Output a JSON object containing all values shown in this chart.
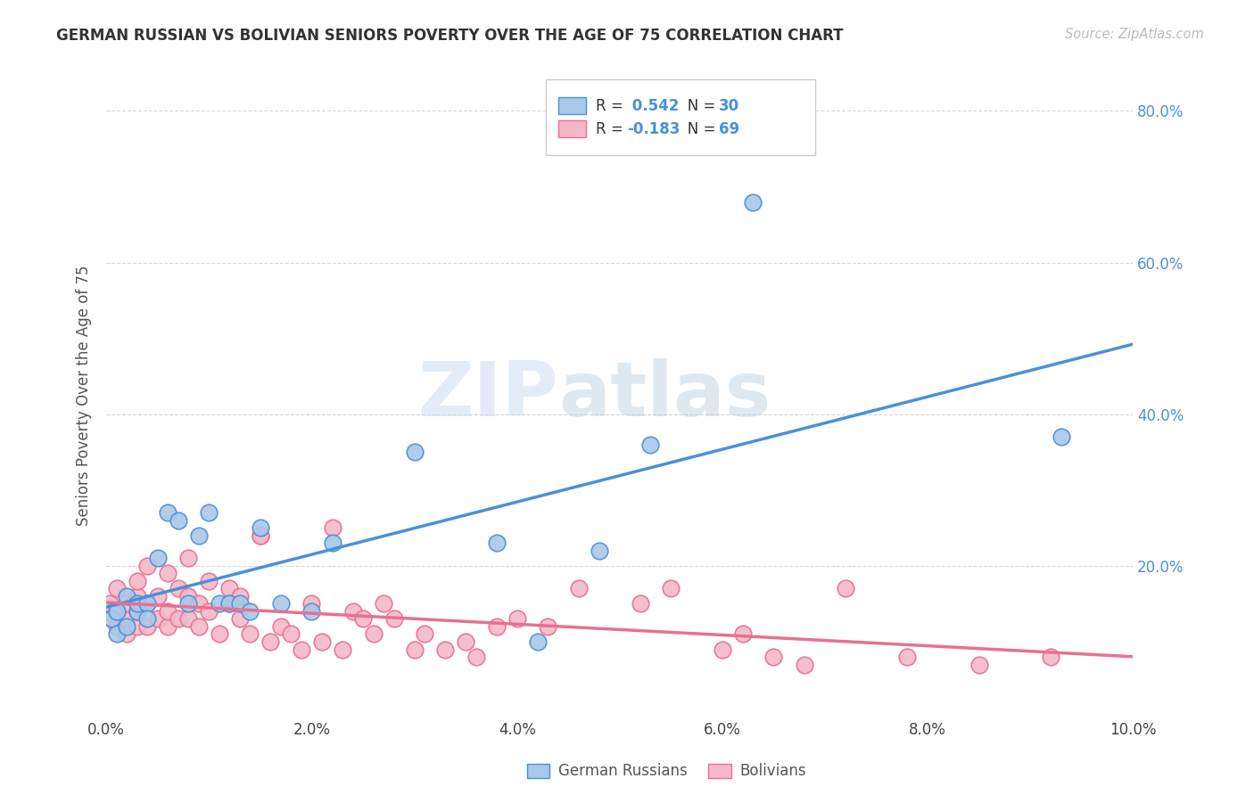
{
  "title": "GERMAN RUSSIAN VS BOLIVIAN SENIORS POVERTY OVER THE AGE OF 75 CORRELATION CHART",
  "source": "Source: ZipAtlas.com",
  "ylabel": "Seniors Poverty Over the Age of 75",
  "xlim": [
    0.0,
    0.1
  ],
  "ylim": [
    0.0,
    0.85
  ],
  "xticks": [
    0.0,
    0.02,
    0.04,
    0.06,
    0.08,
    0.1
  ],
  "yticks": [
    0.0,
    0.2,
    0.4,
    0.6,
    0.8
  ],
  "xticklabels": [
    "0.0%",
    "2.0%",
    "4.0%",
    "6.0%",
    "8.0%",
    "10.0%"
  ],
  "yticklabels_right": [
    "",
    "20.0%",
    "40.0%",
    "60.0%",
    "80.0%"
  ],
  "color_blue": "#a8c8e8",
  "color_pink": "#f5b8c8",
  "line_blue": "#4a90d9",
  "line_pink": "#e87090",
  "R_blue": 0.542,
  "N_blue": 30,
  "R_pink": -0.183,
  "N_pink": 69,
  "legend_label_blue": "German Russians",
  "legend_label_pink": "Bolivians",
  "watermark_zip": "ZIP",
  "watermark_atlas": "atlas",
  "bg_color": "#ffffff",
  "blue_scatter_x": [
    0.0005,
    0.001,
    0.001,
    0.002,
    0.002,
    0.003,
    0.003,
    0.004,
    0.004,
    0.005,
    0.006,
    0.007,
    0.008,
    0.009,
    0.01,
    0.011,
    0.012,
    0.013,
    0.014,
    0.015,
    0.017,
    0.02,
    0.022,
    0.03,
    0.038,
    0.042,
    0.048,
    0.053,
    0.063,
    0.093
  ],
  "blue_scatter_y": [
    0.13,
    0.11,
    0.14,
    0.12,
    0.16,
    0.14,
    0.15,
    0.15,
    0.13,
    0.21,
    0.27,
    0.26,
    0.15,
    0.24,
    0.27,
    0.15,
    0.15,
    0.15,
    0.14,
    0.25,
    0.15,
    0.14,
    0.23,
    0.35,
    0.23,
    0.1,
    0.22,
    0.36,
    0.68,
    0.37
  ],
  "pink_scatter_x": [
    0.0003,
    0.0005,
    0.001,
    0.001,
    0.001,
    0.002,
    0.002,
    0.002,
    0.003,
    0.003,
    0.003,
    0.003,
    0.004,
    0.004,
    0.004,
    0.005,
    0.005,
    0.006,
    0.006,
    0.006,
    0.007,
    0.007,
    0.008,
    0.008,
    0.008,
    0.009,
    0.009,
    0.01,
    0.01,
    0.011,
    0.012,
    0.012,
    0.013,
    0.013,
    0.014,
    0.015,
    0.015,
    0.016,
    0.017,
    0.018,
    0.019,
    0.02,
    0.021,
    0.022,
    0.023,
    0.024,
    0.025,
    0.026,
    0.027,
    0.028,
    0.03,
    0.031,
    0.033,
    0.035,
    0.036,
    0.038,
    0.04,
    0.043,
    0.046,
    0.052,
    0.055,
    0.06,
    0.062,
    0.065,
    0.068,
    0.072,
    0.078,
    0.085,
    0.092
  ],
  "pink_scatter_y": [
    0.15,
    0.13,
    0.17,
    0.12,
    0.14,
    0.11,
    0.13,
    0.15,
    0.12,
    0.14,
    0.16,
    0.18,
    0.12,
    0.15,
    0.2,
    0.13,
    0.16,
    0.12,
    0.14,
    0.19,
    0.13,
    0.17,
    0.13,
    0.16,
    0.21,
    0.12,
    0.15,
    0.14,
    0.18,
    0.11,
    0.15,
    0.17,
    0.13,
    0.16,
    0.11,
    0.24,
    0.24,
    0.1,
    0.12,
    0.11,
    0.09,
    0.15,
    0.1,
    0.25,
    0.09,
    0.14,
    0.13,
    0.11,
    0.15,
    0.13,
    0.09,
    0.11,
    0.09,
    0.1,
    0.08,
    0.12,
    0.13,
    0.12,
    0.17,
    0.15,
    0.17,
    0.09,
    0.11,
    0.08,
    0.07,
    0.17,
    0.08,
    0.07,
    0.08
  ]
}
